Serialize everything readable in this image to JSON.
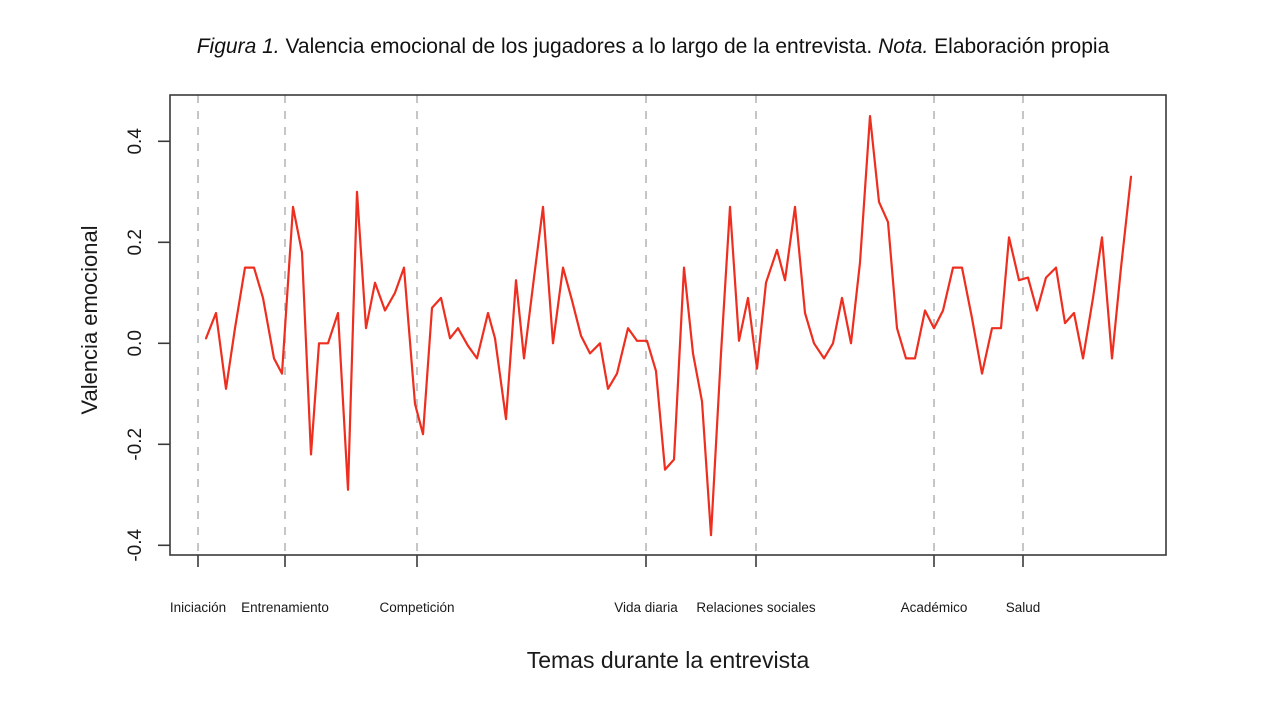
{
  "figure_title": {
    "prefix_italic": "Figura 1.",
    "main_text": "Valencia emocional de los jugadores a lo largo de la entrevista.",
    "note_italic": "Nota.",
    "note_text": "Elaboración propia"
  },
  "chart_data": {
    "type": "line",
    "title": "Figura 1. Valencia emocional de los jugadores a lo largo de la entrevista. Nota. Elaboración propia",
    "xlabel": "Temas durante la entrevista",
    "ylabel": "Valencia emocional",
    "ylim": [
      -0.42,
      0.49
    ],
    "y_ticks": [
      0.4,
      0.2,
      0.0,
      -0.2,
      -0.4
    ],
    "grid": false,
    "legend": "none",
    "line_color": "#ee2e1f",
    "divider_color": "#b3b3b3",
    "axis_color": "#3a3a3a",
    "text_color": "#1a1a1a",
    "sections": [
      {
        "label": "Iniciación",
        "x": 28
      },
      {
        "label": "Entrenamiento",
        "x": 115
      },
      {
        "label": "Competición",
        "x": 247
      },
      {
        "label": "Vida diaria",
        "x": 476
      },
      {
        "label": "Relaciones sociales",
        "x": 586
      },
      {
        "label": "Académico",
        "x": 764
      },
      {
        "label": "Salud",
        "x": 853
      }
    ],
    "x_range": [
      0,
      996
    ],
    "points": [
      [
        36,
        0.01
      ],
      [
        46,
        0.06
      ],
      [
        56,
        -0.09
      ],
      [
        65,
        0.03
      ],
      [
        75,
        0.15
      ],
      [
        84,
        0.15
      ],
      [
        93,
        0.09
      ],
      [
        104,
        -0.03
      ],
      [
        112,
        -0.06
      ],
      [
        123,
        0.27
      ],
      [
        132,
        0.18
      ],
      [
        141,
        -0.22
      ],
      [
        149,
        0.0
      ],
      [
        158,
        0.0
      ],
      [
        168,
        0.06
      ],
      [
        178,
        -0.29
      ],
      [
        187,
        0.3
      ],
      [
        196,
        0.03
      ],
      [
        205,
        0.12
      ],
      [
        215,
        0.065
      ],
      [
        225,
        0.1
      ],
      [
        234,
        0.15
      ],
      [
        245,
        -0.12
      ],
      [
        253,
        -0.18
      ],
      [
        262,
        0.07
      ],
      [
        271,
        0.09
      ],
      [
        280,
        0.01
      ],
      [
        288,
        0.03
      ],
      [
        298,
        -0.005
      ],
      [
        307,
        -0.03
      ],
      [
        318,
        0.06
      ],
      [
        325,
        0.01
      ],
      [
        336,
        -0.15
      ],
      [
        346,
        0.125
      ],
      [
        354,
        -0.03
      ],
      [
        364,
        0.13
      ],
      [
        373,
        0.27
      ],
      [
        383,
        0.0
      ],
      [
        393,
        0.15
      ],
      [
        402,
        0.085
      ],
      [
        411,
        0.015
      ],
      [
        420,
        -0.02
      ],
      [
        430,
        0.0
      ],
      [
        438,
        -0.09
      ],
      [
        447,
        -0.06
      ],
      [
        458,
        0.03
      ],
      [
        467,
        0.005
      ],
      [
        477,
        0.005
      ],
      [
        486,
        -0.055
      ],
      [
        495,
        -0.25
      ],
      [
        504,
        -0.23
      ],
      [
        514,
        0.15
      ],
      [
        523,
        -0.02
      ],
      [
        532,
        -0.115
      ],
      [
        541,
        -0.38
      ],
      [
        551,
        -0.02
      ],
      [
        560,
        0.27
      ],
      [
        569,
        0.005
      ],
      [
        578,
        0.09
      ],
      [
        587,
        -0.05
      ],
      [
        596,
        0.12
      ],
      [
        607,
        0.185
      ],
      [
        615,
        0.125
      ],
      [
        625,
        0.27
      ],
      [
        635,
        0.06
      ],
      [
        644,
        0.0
      ],
      [
        654,
        -0.03
      ],
      [
        663,
        0.0
      ],
      [
        672,
        0.09
      ],
      [
        681,
        0.0
      ],
      [
        690,
        0.16
      ],
      [
        700,
        0.45
      ],
      [
        709,
        0.28
      ],
      [
        718,
        0.24
      ],
      [
        727,
        0.03
      ],
      [
        736,
        -0.03
      ],
      [
        745,
        -0.03
      ],
      [
        755,
        0.065
      ],
      [
        764,
        0.03
      ],
      [
        773,
        0.065
      ],
      [
        783,
        0.15
      ],
      [
        792,
        0.15
      ],
      [
        802,
        0.05
      ],
      [
        812,
        -0.06
      ],
      [
        822,
        0.03
      ],
      [
        831,
        0.03
      ],
      [
        839,
        0.21
      ],
      [
        849,
        0.125
      ],
      [
        858,
        0.13
      ],
      [
        867,
        0.065
      ],
      [
        876,
        0.13
      ],
      [
        886,
        0.15
      ],
      [
        895,
        0.04
      ],
      [
        904,
        0.06
      ],
      [
        913,
        -0.03
      ],
      [
        923,
        0.09
      ],
      [
        932,
        0.21
      ],
      [
        942,
        -0.03
      ],
      [
        951,
        0.15
      ],
      [
        961,
        0.33
      ]
    ]
  }
}
